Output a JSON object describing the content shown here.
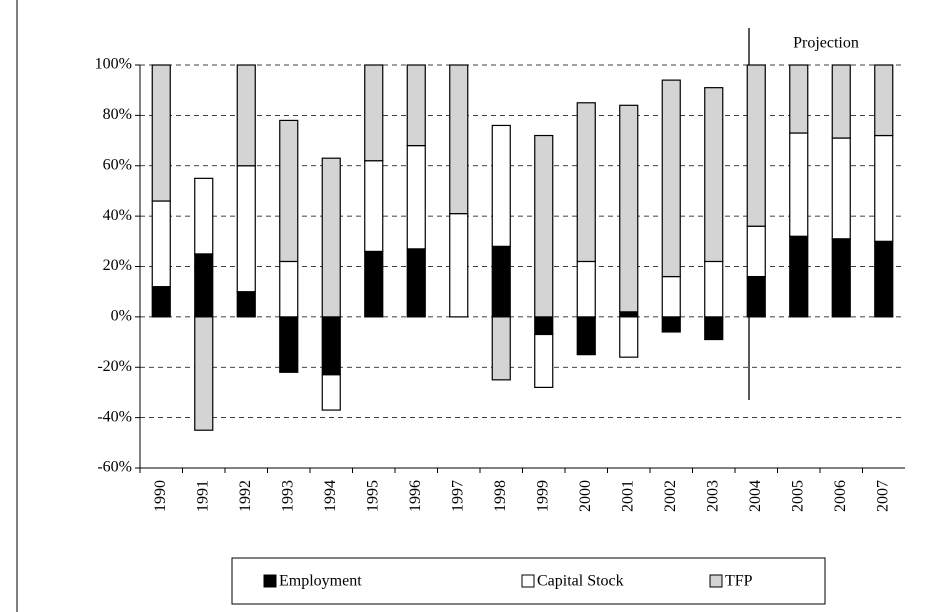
{
  "chart_data": {
    "type": "stacked_bar",
    "annotation": "Projection",
    "categories": [
      "1990",
      "1991",
      "1992",
      "1993",
      "1994",
      "1995",
      "1996",
      "1997",
      "1998",
      "1999",
      "2000",
      "2001",
      "2002",
      "2003",
      "2004",
      "2005",
      "2006",
      "2007"
    ],
    "series": [
      {
        "name": "Employment",
        "color": "#000000",
        "values": [
          12,
          25,
          10,
          -22,
          -23,
          26,
          27,
          0,
          28,
          -7,
          -15,
          2,
          -6,
          -9,
          16,
          32,
          31,
          30
        ]
      },
      {
        "name": "Capital Stock",
        "color": "#ffffff",
        "values": [
          34,
          30,
          50,
          22,
          -14,
          36,
          41,
          41,
          48,
          -21,
          22,
          -16,
          16,
          22,
          20,
          41,
          40,
          42
        ]
      },
      {
        "name": "TFP",
        "color": "#d4d4d4",
        "values": [
          54,
          -45,
          40,
          56,
          63,
          38,
          32,
          59,
          -25,
          72,
          63,
          82,
          78,
          69,
          64,
          27,
          29,
          28
        ]
      }
    ],
    "ylim": [
      -60,
      100
    ],
    "yticks": [
      {
        "value": -60,
        "label": "-60%"
      },
      {
        "value": -40,
        "label": "-40%"
      },
      {
        "value": -20,
        "label": "-20%"
      },
      {
        "value": 0,
        "label": "0%"
      },
      {
        "value": 20,
        "label": "20%"
      },
      {
        "value": 40,
        "label": "40%"
      },
      {
        "value": 60,
        "label": "60%"
      },
      {
        "value": 80,
        "label": "80%"
      },
      {
        "value": 100,
        "label": "100%"
      }
    ],
    "grid": true
  }
}
